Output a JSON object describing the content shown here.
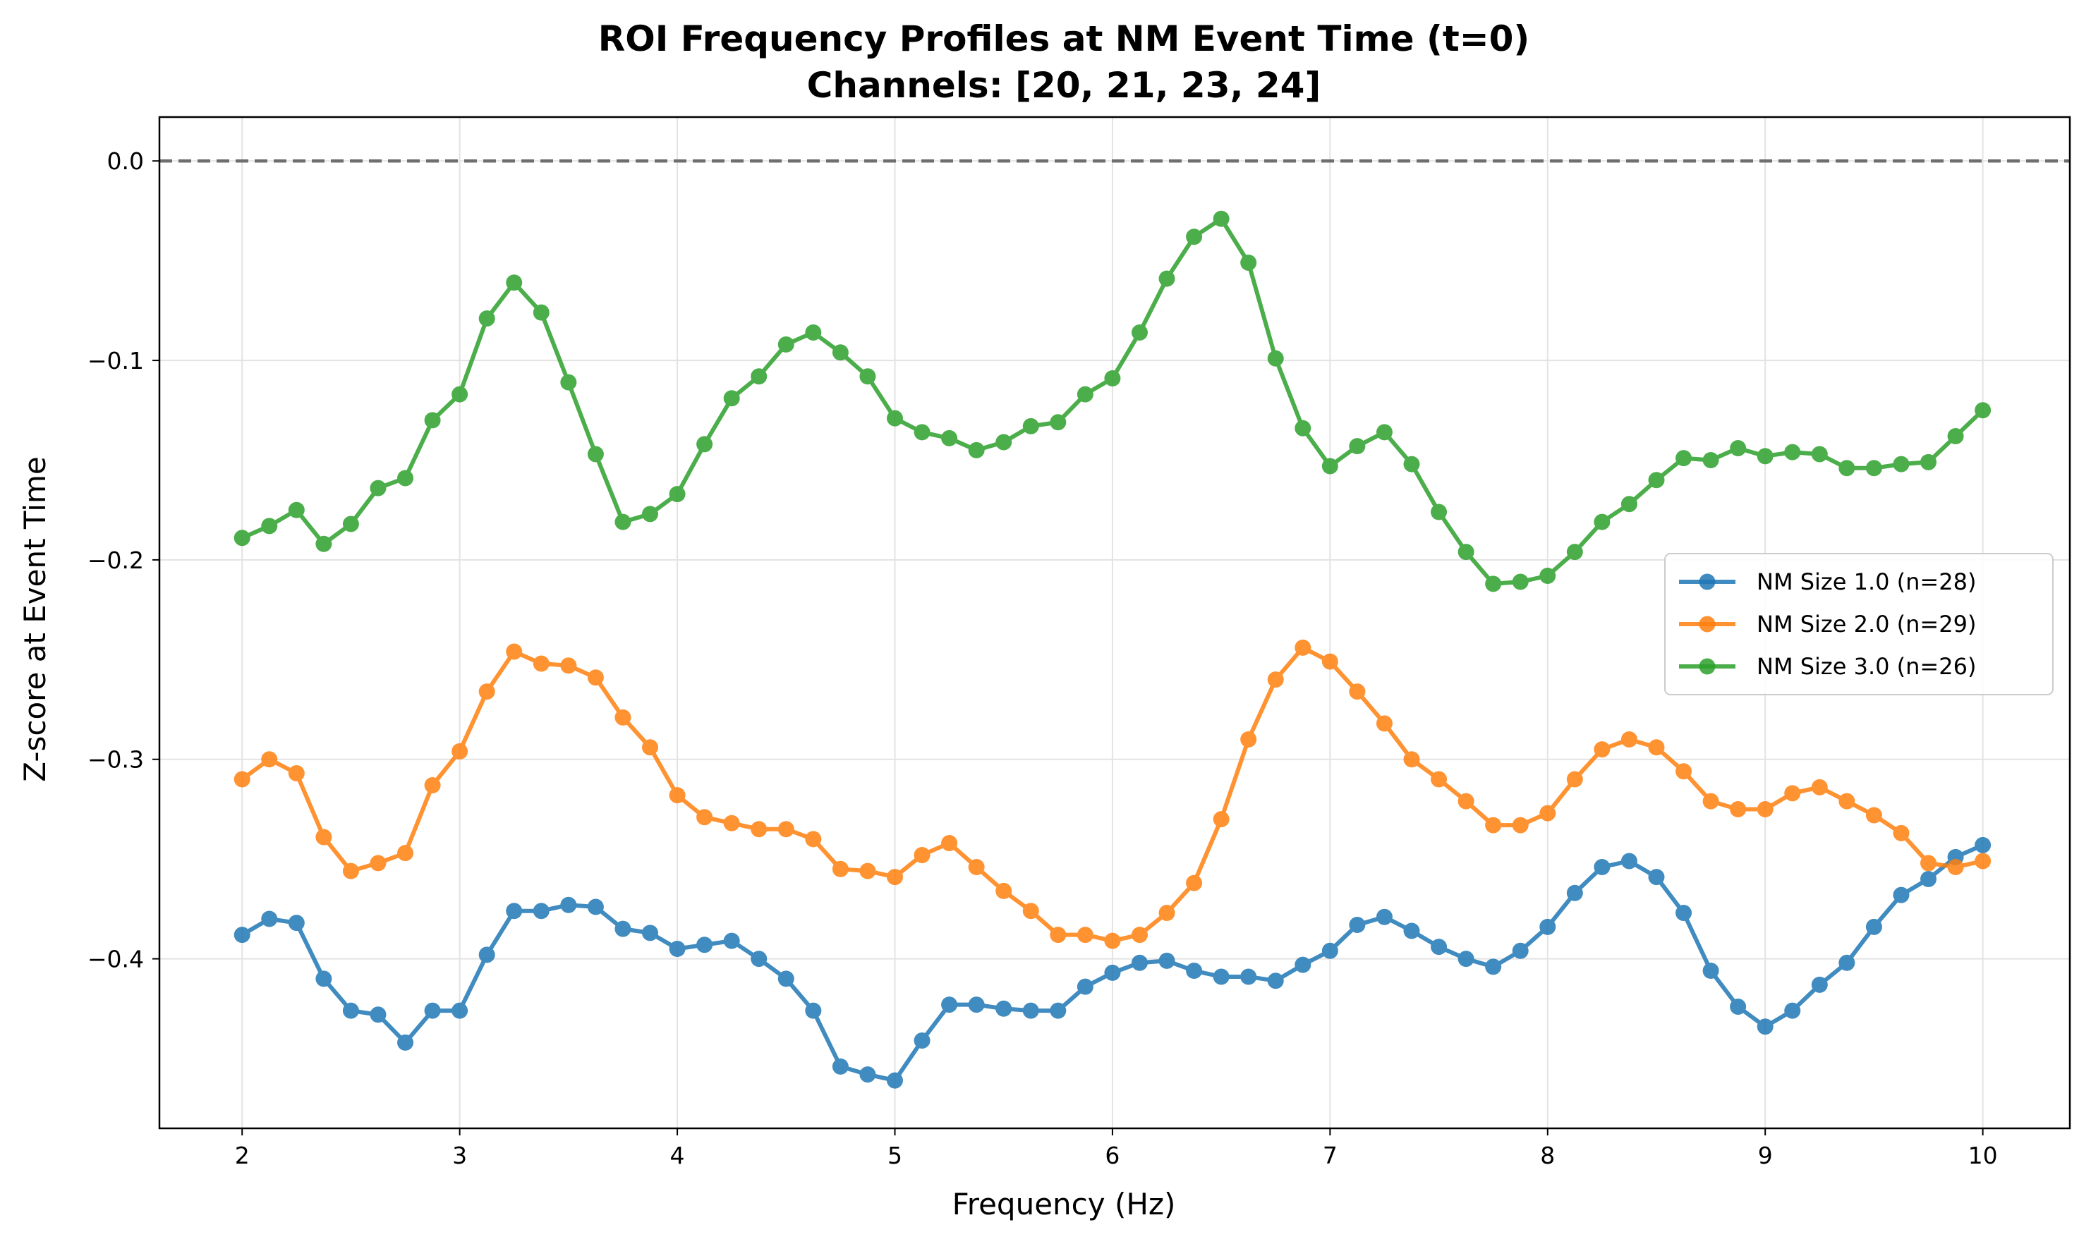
{
  "chart_data": {
    "type": "line",
    "title": "ROI Frequency Profiles at NM Event Time (t=0)",
    "subtitle": "Channels: [20, 21, 23, 24]",
    "xlabel": "Frequency (Hz)",
    "ylabel": "Z-score at Event Time",
    "xlim": [
      1.62,
      10.4
    ],
    "ylim": [
      -0.485,
      0.022
    ],
    "x_ticks": [
      2,
      3,
      4,
      5,
      6,
      7,
      8,
      9,
      10
    ],
    "x_tick_labels": [
      "2",
      "3",
      "4",
      "5",
      "6",
      "7",
      "8",
      "9",
      "10"
    ],
    "y_ticks": [
      0.0,
      -0.1,
      -0.2,
      -0.3,
      -0.4
    ],
    "y_tick_labels": [
      "0.0",
      "−0.1",
      "−0.2",
      "−0.3",
      "−0.4"
    ],
    "grid": true,
    "legend_position": "center-right",
    "reference_line": {
      "y": 0.0,
      "style": "dashed",
      "color": "#6e6e6e"
    },
    "x": [
      2.0,
      2.125,
      2.25,
      2.375,
      2.5,
      2.625,
      2.75,
      2.875,
      3.0,
      3.125,
      3.25,
      3.375,
      3.5,
      3.625,
      3.75,
      3.875,
      4.0,
      4.125,
      4.25,
      4.375,
      4.5,
      4.625,
      4.75,
      4.875,
      5.0,
      5.125,
      5.25,
      5.375,
      5.5,
      5.625,
      5.75,
      5.875,
      6.0,
      6.125,
      6.25,
      6.375,
      6.5,
      6.625,
      6.75,
      6.875,
      7.0,
      7.125,
      7.25,
      7.375,
      7.5,
      7.625,
      7.75,
      7.875,
      8.0,
      8.125,
      8.25,
      8.375,
      8.5,
      8.625,
      8.75,
      8.875,
      9.0,
      9.125,
      9.25,
      9.375,
      9.5,
      9.625,
      9.75,
      9.875,
      10.0
    ],
    "series": [
      {
        "name": "NM Size 1.0 (n=28)",
        "color": "#1f77b4",
        "values": [
          -0.388,
          -0.38,
          -0.382,
          -0.41,
          -0.426,
          -0.428,
          -0.442,
          -0.426,
          -0.426,
          -0.398,
          -0.376,
          -0.376,
          -0.373,
          -0.374,
          -0.385,
          -0.387,
          -0.395,
          -0.393,
          -0.391,
          -0.4,
          -0.41,
          -0.426,
          -0.454,
          -0.458,
          -0.461,
          -0.441,
          -0.423,
          -0.423,
          -0.425,
          -0.426,
          -0.426,
          -0.414,
          -0.407,
          -0.402,
          -0.401,
          -0.406,
          -0.409,
          -0.409,
          -0.411,
          -0.403,
          -0.396,
          -0.383,
          -0.379,
          -0.386,
          -0.394,
          -0.4,
          -0.404,
          -0.396,
          -0.384,
          -0.367,
          -0.354,
          -0.351,
          -0.359,
          -0.377,
          -0.406,
          -0.424,
          -0.434,
          -0.426,
          -0.413,
          -0.402,
          -0.384,
          -0.368,
          -0.36,
          -0.349,
          -0.343
        ]
      },
      {
        "name": "NM Size 2.0 (n=29)",
        "color": "#ff7f0e",
        "values": [
          -0.31,
          -0.3,
          -0.307,
          -0.339,
          -0.356,
          -0.352,
          -0.347,
          -0.313,
          -0.296,
          -0.266,
          -0.246,
          -0.252,
          -0.253,
          -0.259,
          -0.279,
          -0.294,
          -0.318,
          -0.329,
          -0.332,
          -0.335,
          -0.335,
          -0.34,
          -0.355,
          -0.356,
          -0.359,
          -0.348,
          -0.342,
          -0.354,
          -0.366,
          -0.376,
          -0.388,
          -0.388,
          -0.391,
          -0.388,
          -0.377,
          -0.362,
          -0.33,
          -0.29,
          -0.26,
          -0.244,
          -0.251,
          -0.266,
          -0.282,
          -0.3,
          -0.31,
          -0.321,
          -0.333,
          -0.333,
          -0.327,
          -0.31,
          -0.295,
          -0.29,
          -0.294,
          -0.306,
          -0.321,
          -0.325,
          -0.325,
          -0.317,
          -0.314,
          -0.321,
          -0.328,
          -0.337,
          -0.352,
          -0.354,
          -0.351
        ]
      },
      {
        "name": "NM Size 3.0 (n=26)",
        "color": "#2ca02c",
        "values": [
          -0.189,
          -0.183,
          -0.175,
          -0.192,
          -0.182,
          -0.164,
          -0.159,
          -0.13,
          -0.117,
          -0.079,
          -0.061,
          -0.076,
          -0.111,
          -0.147,
          -0.181,
          -0.177,
          -0.167,
          -0.142,
          -0.119,
          -0.108,
          -0.092,
          -0.086,
          -0.096,
          -0.108,
          -0.129,
          -0.136,
          -0.139,
          -0.145,
          -0.141,
          -0.133,
          -0.131,
          -0.117,
          -0.109,
          -0.086,
          -0.059,
          -0.038,
          -0.029,
          -0.051,
          -0.099,
          -0.134,
          -0.153,
          -0.143,
          -0.136,
          -0.152,
          -0.176,
          -0.196,
          -0.212,
          -0.211,
          -0.208,
          -0.196,
          -0.181,
          -0.172,
          -0.16,
          -0.149,
          -0.15,
          -0.144,
          -0.148,
          -0.146,
          -0.147,
          -0.154,
          -0.154,
          -0.152,
          -0.151,
          -0.138,
          -0.125
        ]
      }
    ]
  }
}
